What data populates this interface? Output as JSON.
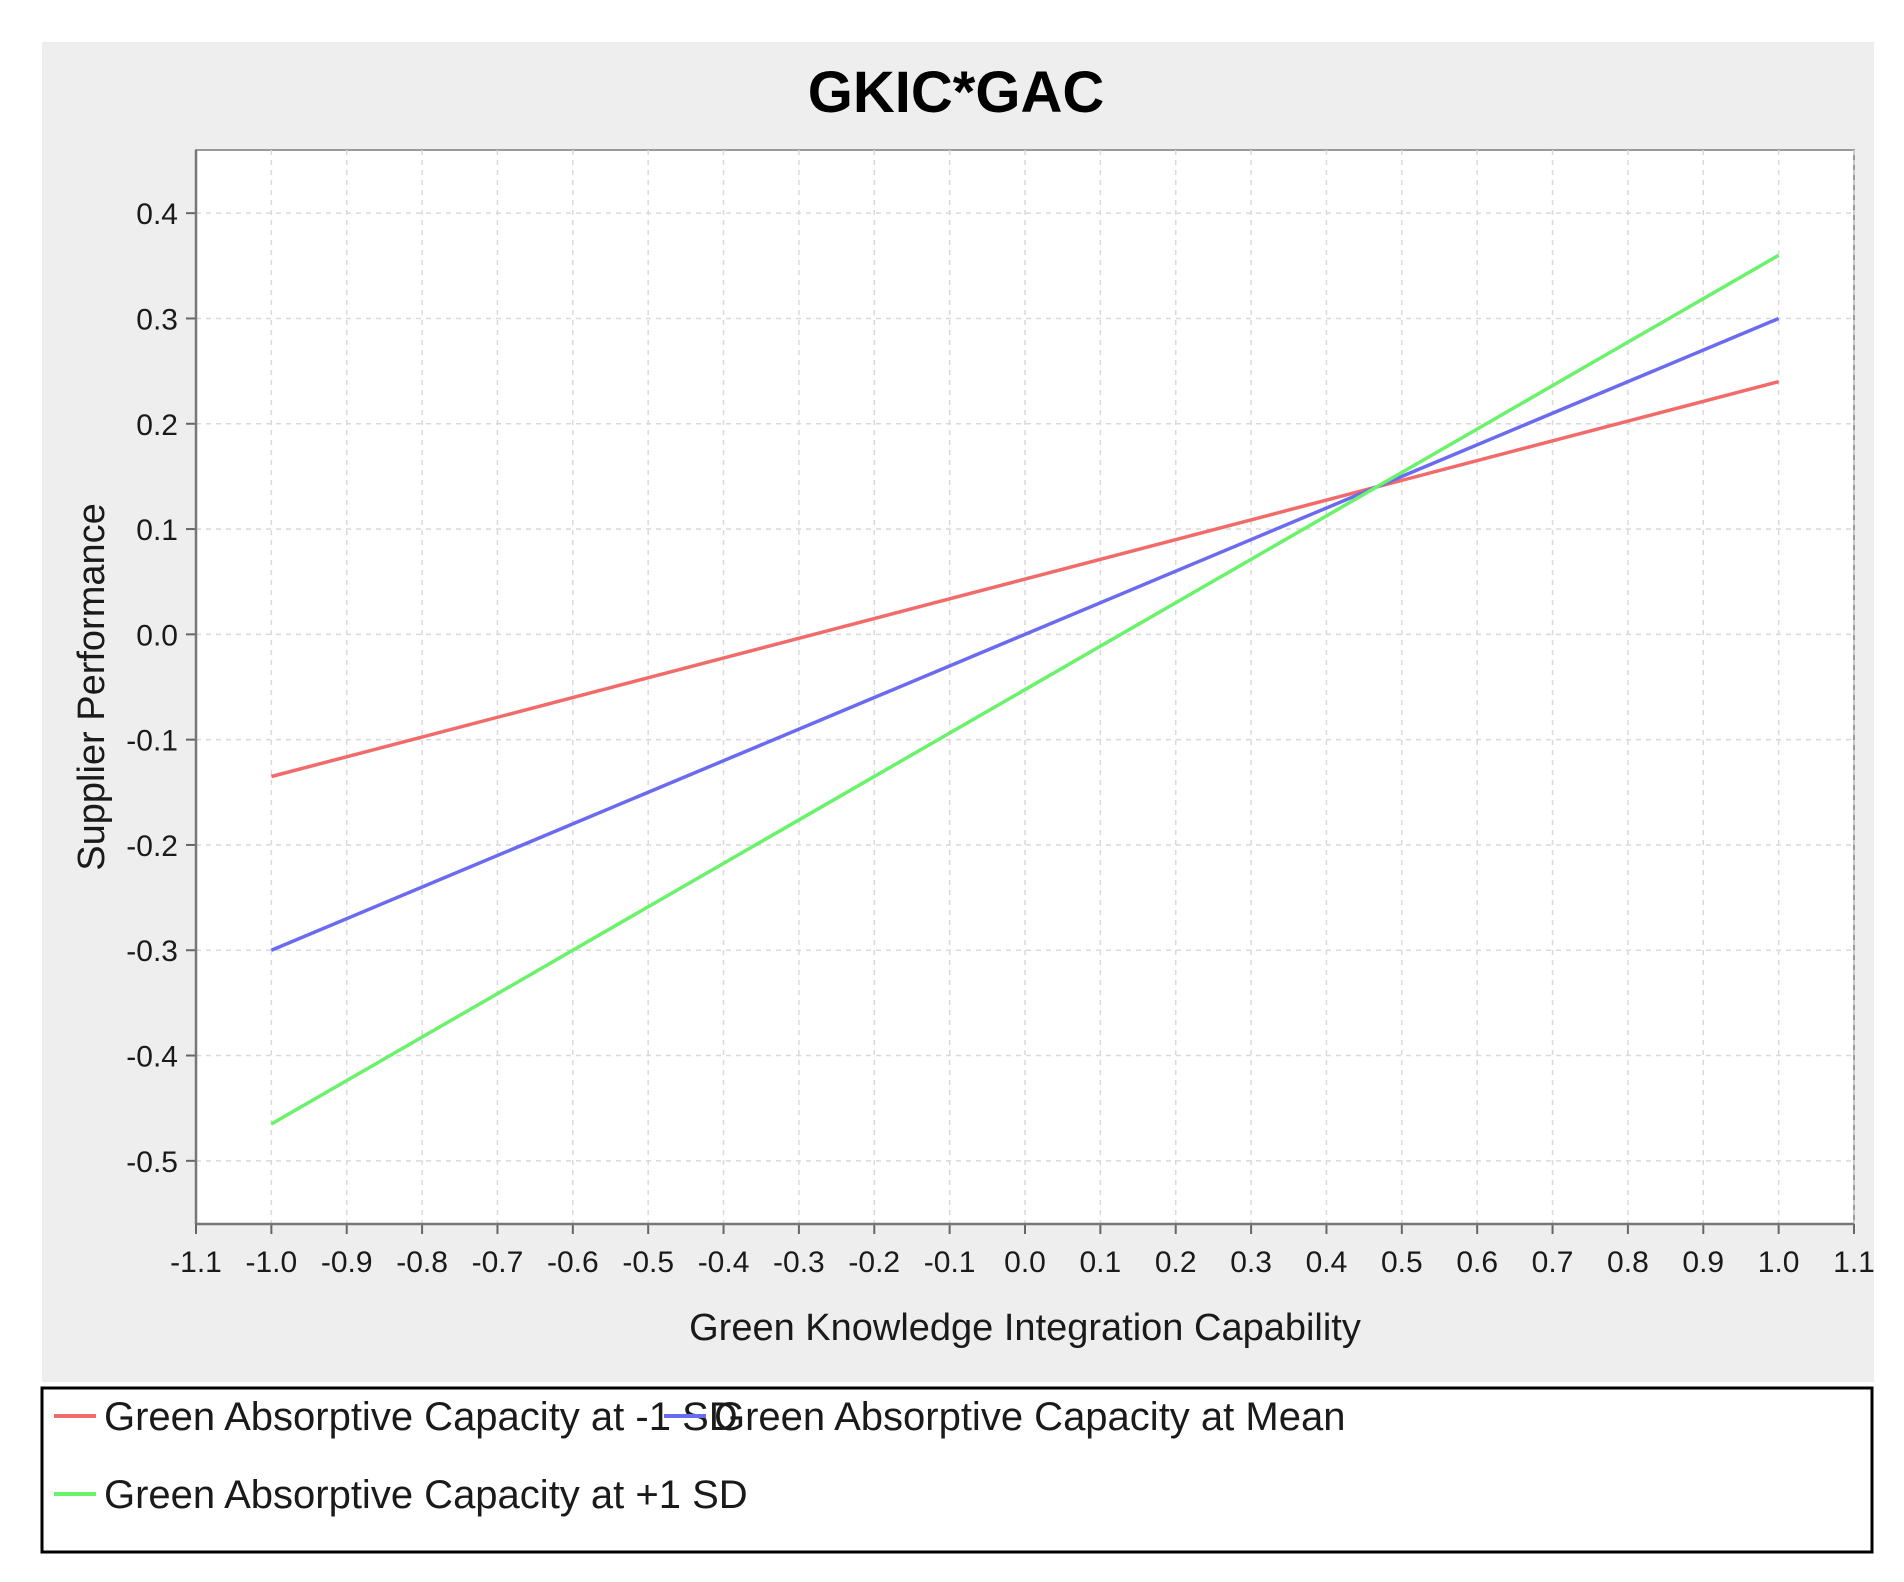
{
  "chart_data": {
    "type": "line",
    "title": "GKIC*GAC",
    "xlabel": "Green Knowledge Integration Capability",
    "ylabel": "Supplier Performance",
    "xlim": [
      -1.1,
      1.1
    ],
    "ylim": [
      -0.56,
      0.46
    ],
    "x_ticks": [
      "-1.1",
      "-1.0",
      "-0.9",
      "-0.8",
      "-0.7",
      "-0.6",
      "-0.5",
      "-0.4",
      "-0.3",
      "-0.2",
      "-0.1",
      "0.0",
      "0.1",
      "0.2",
      "0.3",
      "0.4",
      "0.5",
      "0.6",
      "0.7",
      "0.8",
      "0.9",
      "1.0",
      "1.1"
    ],
    "y_ticks": [
      "0.4",
      "0.3",
      "0.2",
      "0.1",
      "0.0",
      "-0.1",
      "-0.2",
      "-0.3",
      "-0.4",
      "-0.5"
    ],
    "grid": true,
    "legend_position": "bottom",
    "series": [
      {
        "name": "Green Absorptive Capacity at -1 SD",
        "color": "#f26b6b",
        "x": [
          -1.0,
          1.0
        ],
        "y": [
          -0.135,
          0.24
        ]
      },
      {
        "name": "Green Absorptive Capacity at Mean",
        "color": "#6b6bf2",
        "x": [
          -1.0,
          1.0
        ],
        "y": [
          -0.3,
          0.3
        ]
      },
      {
        "name": "Green Absorptive Capacity at +1 SD",
        "color": "#6bf26b",
        "x": [
          -1.0,
          1.0
        ],
        "y": [
          -0.465,
          0.36
        ]
      }
    ]
  }
}
